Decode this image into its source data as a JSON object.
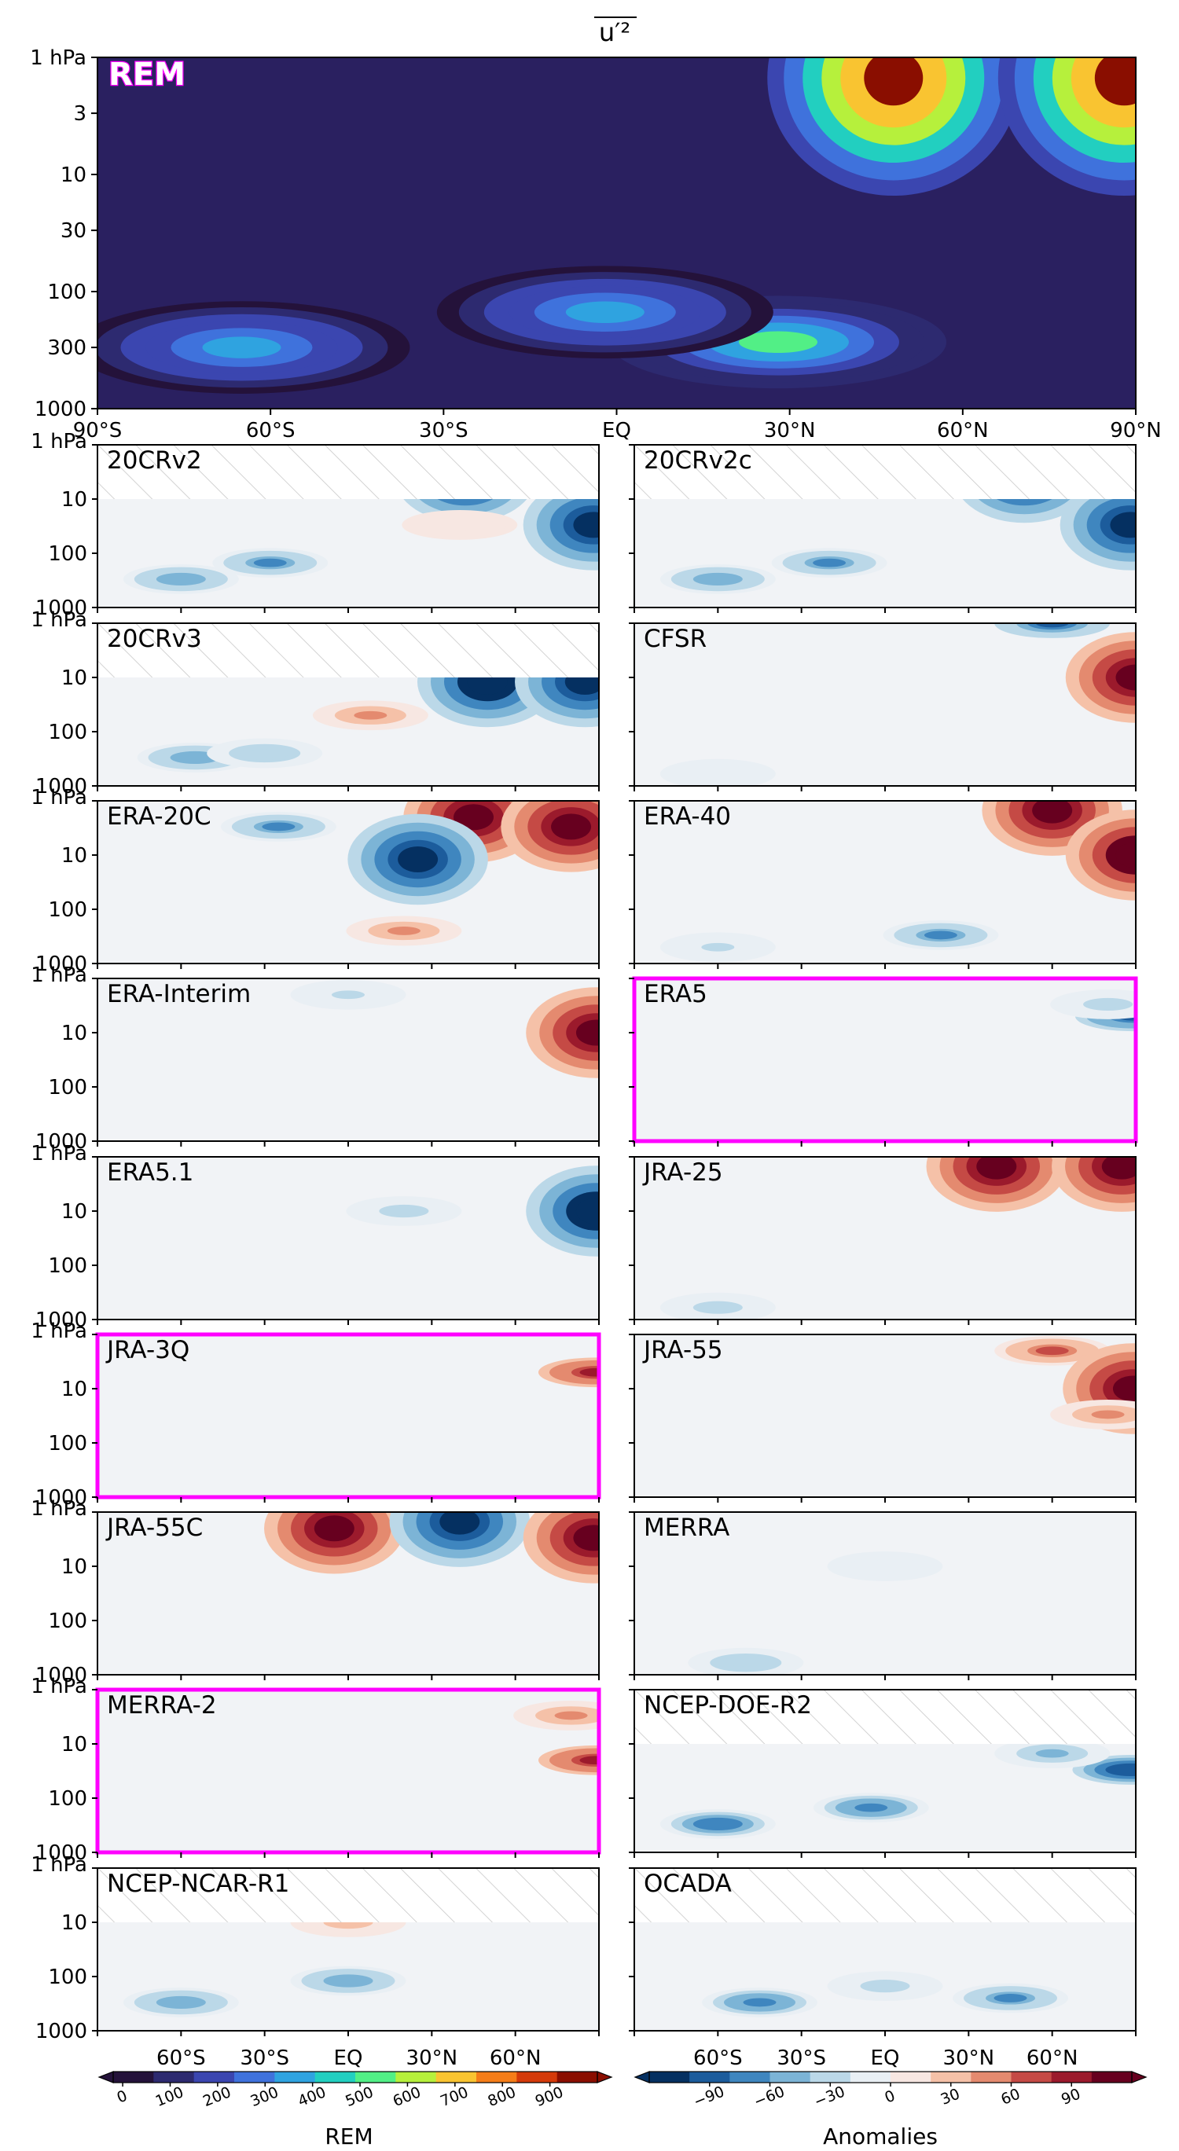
{
  "figure": {
    "title": "u′²",
    "hatch_color": "#c8c8c8",
    "highlight_color": "#ff00ff"
  },
  "main": {
    "label": "REM",
    "x_ticks": [
      "90°S",
      "60°S",
      "30°S",
      "EQ",
      "30°N",
      "60°N",
      "90°N"
    ],
    "y_ticks": [
      "1 hPa",
      "3",
      "10",
      "30",
      "100",
      "300",
      "1000"
    ]
  },
  "small_y_ticks": [
    "1 hPa",
    "10",
    "100",
    "1000"
  ],
  "bottom_x_ticks": [
    "60°S",
    "30°S",
    "EQ",
    "30°N",
    "60°N"
  ],
  "panels": [
    {
      "name": "20CRv2",
      "hatched_top": true,
      "highlight": false
    },
    {
      "name": "20CRv2c",
      "hatched_top": true,
      "highlight": false
    },
    {
      "name": "20CRv3",
      "hatched_top": true,
      "highlight": false
    },
    {
      "name": "CFSR",
      "hatched_top": false,
      "highlight": false
    },
    {
      "name": "ERA-20C",
      "hatched_top": false,
      "highlight": false
    },
    {
      "name": "ERA-40",
      "hatched_top": false,
      "highlight": false
    },
    {
      "name": "ERA-Interim",
      "hatched_top": false,
      "highlight": false
    },
    {
      "name": "ERA5",
      "hatched_top": false,
      "highlight": true
    },
    {
      "name": "ERA5.1",
      "hatched_top": false,
      "highlight": false
    },
    {
      "name": "JRA-25",
      "hatched_top": false,
      "highlight": false
    },
    {
      "name": "JRA-3Q",
      "hatched_top": false,
      "highlight": true
    },
    {
      "name": "JRA-55",
      "hatched_top": false,
      "highlight": false
    },
    {
      "name": "JRA-55C",
      "hatched_top": false,
      "highlight": false
    },
    {
      "name": "MERRA",
      "hatched_top": false,
      "highlight": false
    },
    {
      "name": "MERRA-2",
      "hatched_top": false,
      "highlight": true
    },
    {
      "name": "NCEP-DOE-R2",
      "hatched_top": true,
      "highlight": false
    },
    {
      "name": "NCEP-NCAR-R1",
      "hatched_top": true,
      "highlight": false
    },
    {
      "name": "OCADA",
      "hatched_top": true,
      "highlight": false
    }
  ],
  "colorbars": {
    "rem": {
      "label": "REM",
      "ticks": [
        "0",
        "100",
        "200",
        "300",
        "400",
        "500",
        "600",
        "700",
        "800",
        "900"
      ],
      "colors": [
        "#24123a",
        "#2d2a70",
        "#3b46b0",
        "#3f72dc",
        "#2fa3e0",
        "#22cfc0",
        "#52ef86",
        "#b6f03c",
        "#f9c431",
        "#f57d18",
        "#d43a0a",
        "#8a0e00"
      ]
    },
    "anom": {
      "label": "Anomalies",
      "ticks": [
        "−90",
        "−60",
        "−30",
        "0",
        "30",
        "60",
        "90"
      ],
      "colors": [
        "#053061",
        "#1c5c9c",
        "#3f86bf",
        "#7cb4d6",
        "#bbd8e8",
        "#e9eff4",
        "#f7e7e2",
        "#f5c1a8",
        "#e48a6f",
        "#c54a45",
        "#9b1a2c",
        "#67001f"
      ]
    }
  },
  "chart_data": {
    "type": "heatmap",
    "title": "u′²",
    "x_axis": {
      "range": [
        -90,
        90
      ],
      "ticks": [
        "90°S",
        "60°S",
        "30°S",
        "EQ",
        "30°N",
        "60°N",
        "90°N"
      ]
    },
    "y_axis": {
      "scale": "log",
      "inverted": true,
      "range_hPa": [
        1000,
        1
      ],
      "ticks": [
        "1 hPa",
        "3",
        "10",
        "30",
        "100",
        "300",
        "1000"
      ]
    },
    "rem_field": {
      "background": 55,
      "features": [
        {
          "lat": 48,
          "p_hPa": 1.5,
          "value": 950
        },
        {
          "lat": 88,
          "p_hPa": 1.5,
          "value": 950
        },
        {
          "lat": 28,
          "p_hPa": 270,
          "value": 520
        },
        {
          "lat": -65,
          "p_hPa": 300,
          "value": 370
        },
        {
          "lat": -2,
          "p_hPa": 150,
          "value": 360
        }
      ]
    },
    "panels": [
      {
        "name": "20CRv2",
        "features": [
          {
            "lat": 42,
            "p_hPa": 4,
            "value": -110
          },
          {
            "lat": 88,
            "p_hPa": 30,
            "value": -110
          },
          {
            "lat": -60,
            "p_hPa": 300,
            "value": -55
          },
          {
            "lat": -28,
            "p_hPa": 150,
            "value": -60
          },
          {
            "lat": 40,
            "p_hPa": 30,
            "value": 15
          }
        ]
      },
      {
        "name": "20CRv2c",
        "features": [
          {
            "lat": 50,
            "p_hPa": 4,
            "value": -110
          },
          {
            "lat": 88,
            "p_hPa": 30,
            "value": -110
          },
          {
            "lat": -60,
            "p_hPa": 300,
            "value": -55
          },
          {
            "lat": -20,
            "p_hPa": 150,
            "value": -60
          }
        ]
      },
      {
        "name": "20CRv3",
        "features": [
          {
            "lat": 50,
            "p_hPa": 12,
            "value": -120
          },
          {
            "lat": 85,
            "p_hPa": 12,
            "value": -100
          },
          {
            "lat": -55,
            "p_hPa": 300,
            "value": -50
          },
          {
            "lat": 8,
            "p_hPa": 50,
            "value": 40
          },
          {
            "lat": -30,
            "p_hPa": 250,
            "value": -35
          }
        ]
      },
      {
        "name": "CFSR",
        "features": [
          {
            "lat": 60,
            "p_hPa": 1,
            "value": -80
          },
          {
            "lat": 90,
            "p_hPa": 10,
            "value": 110
          },
          {
            "lat": -60,
            "p_hPa": 600,
            "value": -18
          }
        ]
      },
      {
        "name": "ERA-20C",
        "features": [
          {
            "lat": 45,
            "p_hPa": 2,
            "value": 110
          },
          {
            "lat": 80,
            "p_hPa": 3,
            "value": 110
          },
          {
            "lat": 25,
            "p_hPa": 12,
            "value": -100
          },
          {
            "lat": -25,
            "p_hPa": 3,
            "value": -60
          },
          {
            "lat": 20,
            "p_hPa": 250,
            "value": 40
          }
        ]
      },
      {
        "name": "ERA-40",
        "features": [
          {
            "lat": 60,
            "p_hPa": 1.5,
            "value": 110
          },
          {
            "lat": 90,
            "p_hPa": 10,
            "value": 120
          },
          {
            "lat": 20,
            "p_hPa": 300,
            "value": -60
          },
          {
            "lat": -60,
            "p_hPa": 500,
            "value": -20
          }
        ]
      },
      {
        "name": "ERA-Interim",
        "features": [
          {
            "lat": 89,
            "p_hPa": 10,
            "value": 100
          },
          {
            "lat": 0,
            "p_hPa": 2,
            "value": -20
          }
        ]
      },
      {
        "name": "ERA5",
        "features": [
          {
            "lat": 89,
            "p_hPa": 5,
            "value": -90
          },
          {
            "lat": 80,
            "p_hPa": 3,
            "value": -25
          }
        ]
      },
      {
        "name": "ERA5.1",
        "features": [
          {
            "lat": 89,
            "p_hPa": 10,
            "value": -120
          },
          {
            "lat": 20,
            "p_hPa": 10,
            "value": -25
          }
        ]
      },
      {
        "name": "JRA-25",
        "features": [
          {
            "lat": 40,
            "p_hPa": 1.5,
            "value": 110
          },
          {
            "lat": 85,
            "p_hPa": 1.5,
            "value": 110
          },
          {
            "lat": -60,
            "p_hPa": 600,
            "value": -25
          }
        ]
      },
      {
        "name": "JRA-3Q",
        "features": [
          {
            "lat": 89,
            "p_hPa": 5,
            "value": 90
          }
        ]
      },
      {
        "name": "JRA-55",
        "features": [
          {
            "lat": 60,
            "p_hPa": 2,
            "value": 60
          },
          {
            "lat": 89,
            "p_hPa": 10,
            "value": 100
          },
          {
            "lat": 80,
            "p_hPa": 30,
            "value": 40
          }
        ]
      },
      {
        "name": "JRA-55C",
        "features": [
          {
            "lat": -5,
            "p_hPa": 2,
            "value": 100
          },
          {
            "lat": 40,
            "p_hPa": 1.5,
            "value": -110
          },
          {
            "lat": 88,
            "p_hPa": 3,
            "value": 110
          }
        ]
      },
      {
        "name": "MERRA",
        "features": [
          {
            "lat": -50,
            "p_hPa": 600,
            "value": -35
          },
          {
            "lat": 0,
            "p_hPa": 10,
            "value": -15
          }
        ]
      },
      {
        "name": "MERRA-2",
        "features": [
          {
            "lat": 80,
            "p_hPa": 3,
            "value": 40
          },
          {
            "lat": 89,
            "p_hPa": 20,
            "value": 90
          }
        ]
      },
      {
        "name": "NCEP-DOE-R2",
        "features": [
          {
            "lat": -60,
            "p_hPa": 300,
            "value": -75
          },
          {
            "lat": -5,
            "p_hPa": 150,
            "value": -65
          },
          {
            "lat": 88,
            "p_hPa": 30,
            "value": -95
          },
          {
            "lat": 60,
            "p_hPa": 15,
            "value": -40
          }
        ]
      },
      {
        "name": "NCEP-NCAR-R1",
        "features": [
          {
            "lat": -60,
            "p_hPa": 300,
            "value": -55
          },
          {
            "lat": 0,
            "p_hPa": 120,
            "value": -50
          },
          {
            "lat": 0,
            "p_hPa": 10,
            "value": 25
          }
        ]
      },
      {
        "name": "OCADA",
        "features": [
          {
            "lat": -45,
            "p_hPa": 300,
            "value": -65
          },
          {
            "lat": 45,
            "p_hPa": 250,
            "value": -60
          },
          {
            "lat": 0,
            "p_hPa": 150,
            "value": -25
          }
        ]
      }
    ]
  }
}
